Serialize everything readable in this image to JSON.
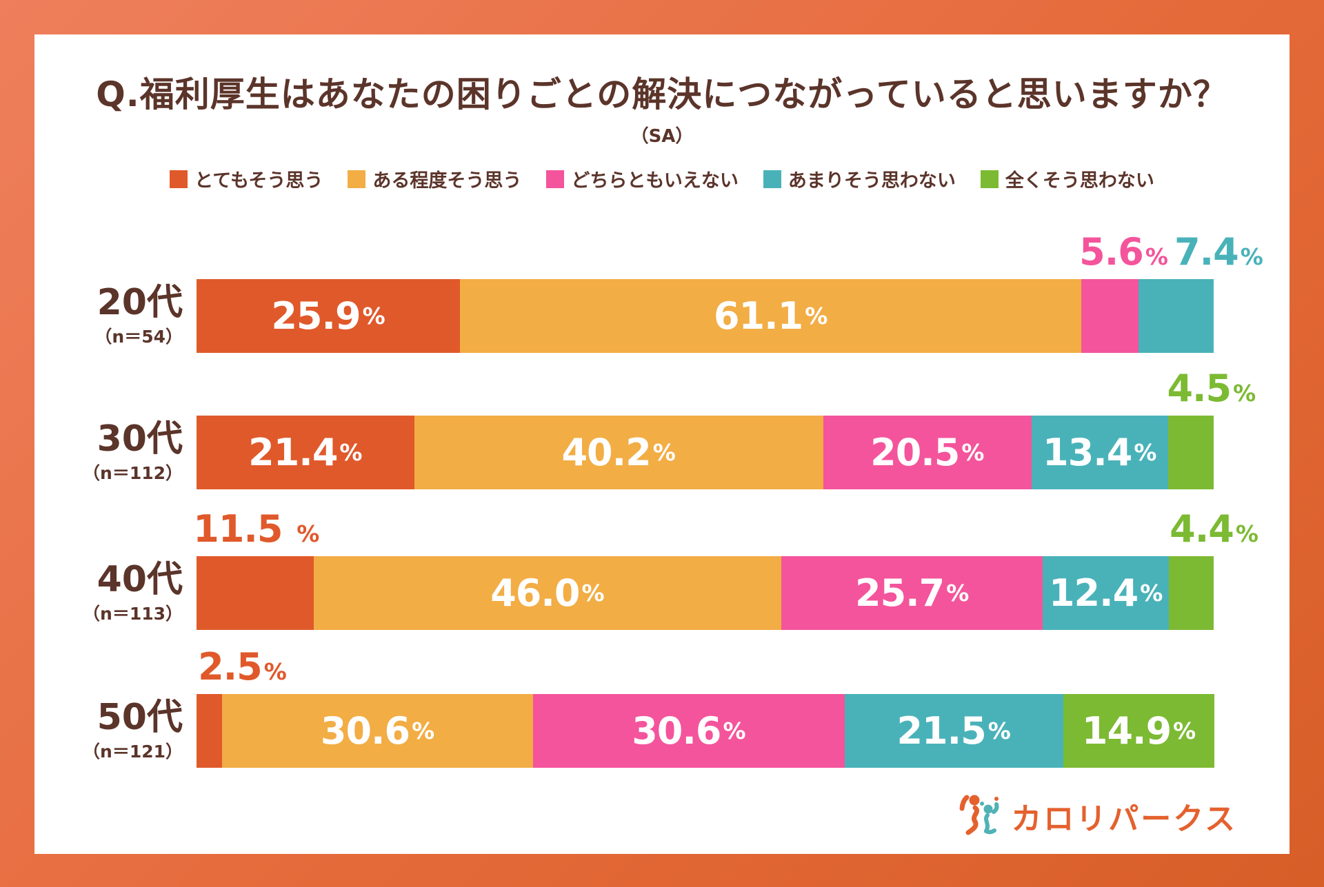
{
  "header": {
    "title": "Q.福利厚生はあなたの困りごとの解決につながっていると思いますか？",
    "subtitle": "（SA）"
  },
  "palette": [
    "#E0592B",
    "#F2AD45",
    "#F4549B",
    "#49B2B9",
    "#7CBA33"
  ],
  "legend": [
    {
      "label": "とてもそう思う",
      "color": 0
    },
    {
      "label": "ある程度そう思う",
      "color": 1
    },
    {
      "label": "どちらともいえない",
      "color": 2
    },
    {
      "label": "あまりそう思わない",
      "color": 3
    },
    {
      "label": "全くそう思わない",
      "color": 4
    }
  ],
  "chart_data": {
    "type": "bar",
    "orientation": "horizontal-stacked",
    "unit": "%",
    "xlim": [
      0,
      100
    ],
    "grid": false,
    "legend_position": "top",
    "series_names": [
      "とてもそう思う",
      "ある程度そう思う",
      "どちらともいえない",
      "あまりそう思わない",
      "全くそう思わない"
    ],
    "categories": [
      "20代",
      "30代",
      "40代",
      "50代"
    ],
    "rows": [
      {
        "category": "20代",
        "n_label": "（n＝54）",
        "segments": [
          {
            "series": "とてもそう思う",
            "color": 0,
            "value": 25.9,
            "num": "25.9",
            "label_pos": "inside"
          },
          {
            "series": "ある程度そう思う",
            "color": 1,
            "value": 61.1,
            "num": "61.1",
            "label_pos": "inside"
          },
          {
            "series": "どちらともいえない",
            "color": 2,
            "value": 5.6,
            "num": "5.6",
            "label_pos": "above",
            "shift": 20
          },
          {
            "series": "あまりそう思わない",
            "color": 3,
            "value": 7.4,
            "num": "7.4",
            "label_pos": "above",
            "shift": 62
          }
        ]
      },
      {
        "category": "30代",
        "n_label": "（n＝112）",
        "segments": [
          {
            "series": "とてもそう思う",
            "color": 0,
            "value": 21.4,
            "num": "21.4",
            "label_pos": "inside"
          },
          {
            "series": "ある程度そう思う",
            "color": 1,
            "value": 40.2,
            "num": "40.2",
            "label_pos": "inside"
          },
          {
            "series": "どちらともいえない",
            "color": 2,
            "value": 20.5,
            "num": "20.5",
            "label_pos": "inside"
          },
          {
            "series": "あまりそう思わない",
            "color": 3,
            "value": 13.4,
            "num": "13.4",
            "label_pos": "inside"
          },
          {
            "series": "全くそう思わない",
            "color": 4,
            "value": 4.5,
            "num": "4.5",
            "label_pos": "above",
            "shift": 30
          }
        ]
      },
      {
        "category": "40代",
        "n_label": "（n＝113）",
        "segments": [
          {
            "series": "とてもそう思う",
            "color": 0,
            "value": 11.5,
            "num": "11.5 ",
            "label_pos": "above",
            "shift": 2
          },
          {
            "series": "ある程度そう思う",
            "color": 1,
            "value": 46.0,
            "num": "46.0",
            "label_pos": "inside"
          },
          {
            "series": "どちらともいえない",
            "color": 2,
            "value": 25.7,
            "num": "25.7",
            "label_pos": "inside"
          },
          {
            "series": "あまりそう思わない",
            "color": 3,
            "value": 12.4,
            "num": "12.4",
            "label_pos": "inside"
          },
          {
            "series": "全くそう思わない",
            "color": 4,
            "value": 4.4,
            "num": "4.4",
            "label_pos": "above",
            "shift": 33
          }
        ]
      },
      {
        "category": "50代",
        "n_label": "（n＝121）",
        "segments": [
          {
            "series": "とてもそう思う",
            "color": 0,
            "value": 2.5,
            "num": "2.5",
            "label_pos": "above",
            "shift": 48
          },
          {
            "series": "ある程度そう思う",
            "color": 1,
            "value": 30.6,
            "num": "30.6",
            "label_pos": "inside"
          },
          {
            "series": "どちらともいえない",
            "color": 2,
            "value": 30.6,
            "num": "30.6",
            "label_pos": "inside"
          },
          {
            "series": "あまりそう思わない",
            "color": 3,
            "value": 21.5,
            "num": "21.5",
            "label_pos": "inside"
          },
          {
            "series": "全くそう思わない",
            "color": 4,
            "value": 14.9,
            "num": "14.9",
            "label_pos": "inside"
          }
        ]
      }
    ]
  },
  "footer": {
    "logo_text": "カロリパークス"
  }
}
